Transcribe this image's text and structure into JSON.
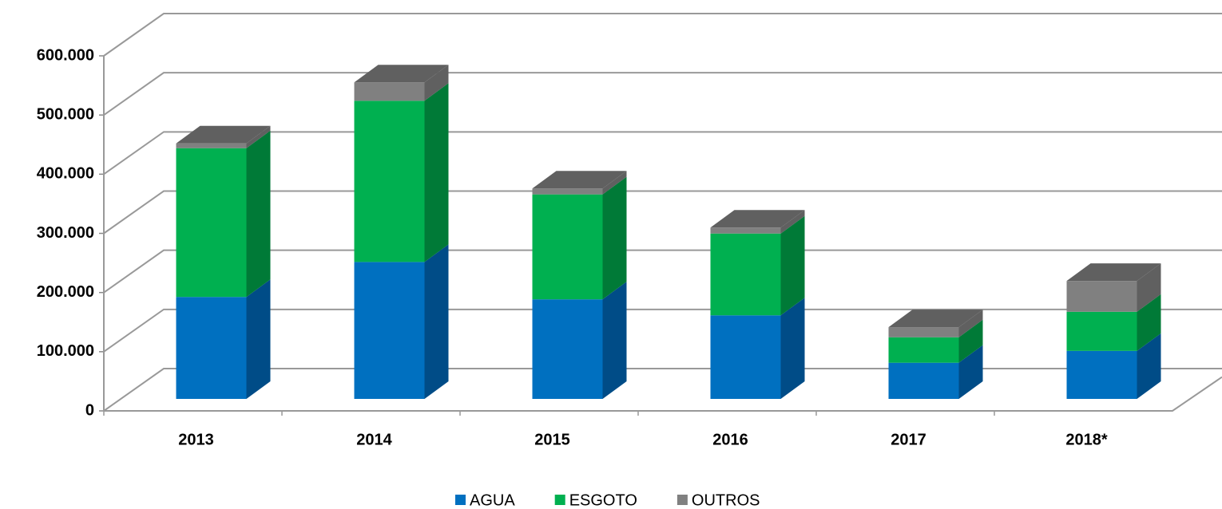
{
  "chart_data": {
    "type": "bar",
    "stacked": true,
    "three_d": true,
    "categories": [
      "2013",
      "2014",
      "2015",
      "2016",
      "2017",
      "2018*"
    ],
    "series": [
      {
        "name": "AGUA",
        "color": "#0070c0",
        "values": [
          172000,
          231000,
          168000,
          141000,
          61000,
          81000
        ]
      },
      {
        "name": "ESGOTO",
        "color": "#00b050",
        "values": [
          251000,
          272000,
          177000,
          138000,
          43000,
          66000
        ]
      },
      {
        "name": "OUTROS",
        "color": "#808080",
        "values": [
          8000,
          31000,
          10000,
          10000,
          17000,
          52000
        ]
      }
    ],
    "ylim": [
      0,
      600000
    ],
    "yticks": [
      0,
      {
        "value": 100000,
        "label": "100.000"
      },
      {
        "value": 200000,
        "label": "200.000"
      },
      {
        "value": 300000,
        "label": "300.000"
      },
      {
        "value": 400000,
        "label": "400.000"
      },
      {
        "value": 500000,
        "label": "500.000"
      },
      {
        "value": 600000,
        "label": "600.000"
      }
    ],
    "grid": true,
    "legend": "bottom"
  }
}
